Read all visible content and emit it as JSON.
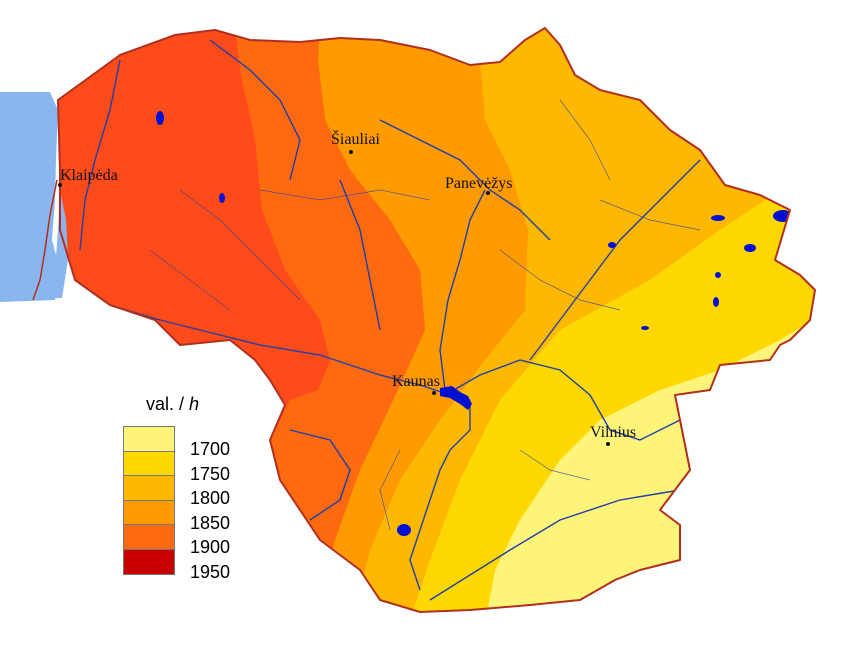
{
  "legend": {
    "title": "val. / ",
    "unit": "h",
    "classes": [
      {
        "label": "1700",
        "color": "#FFF47A"
      },
      {
        "label": "1750",
        "color": "#FFD800"
      },
      {
        "label": "1800",
        "color": "#FFB800"
      },
      {
        "label": "1850",
        "color": "#FF9A00"
      },
      {
        "label": "1900",
        "color": "#FF6A10"
      },
      {
        "label": "1950",
        "color": "#C80000"
      }
    ]
  },
  "cities": [
    {
      "name": "Klaipėda"
    },
    {
      "name": "Šiauliai"
    },
    {
      "name": "Panevėžys"
    },
    {
      "name": "Kaunas"
    },
    {
      "name": "Vilnius"
    }
  ],
  "colors": {
    "sea": "#8AB6F0",
    "border": "#B03020",
    "river": "#1F3FA8",
    "lake": "#0010D0"
  }
}
